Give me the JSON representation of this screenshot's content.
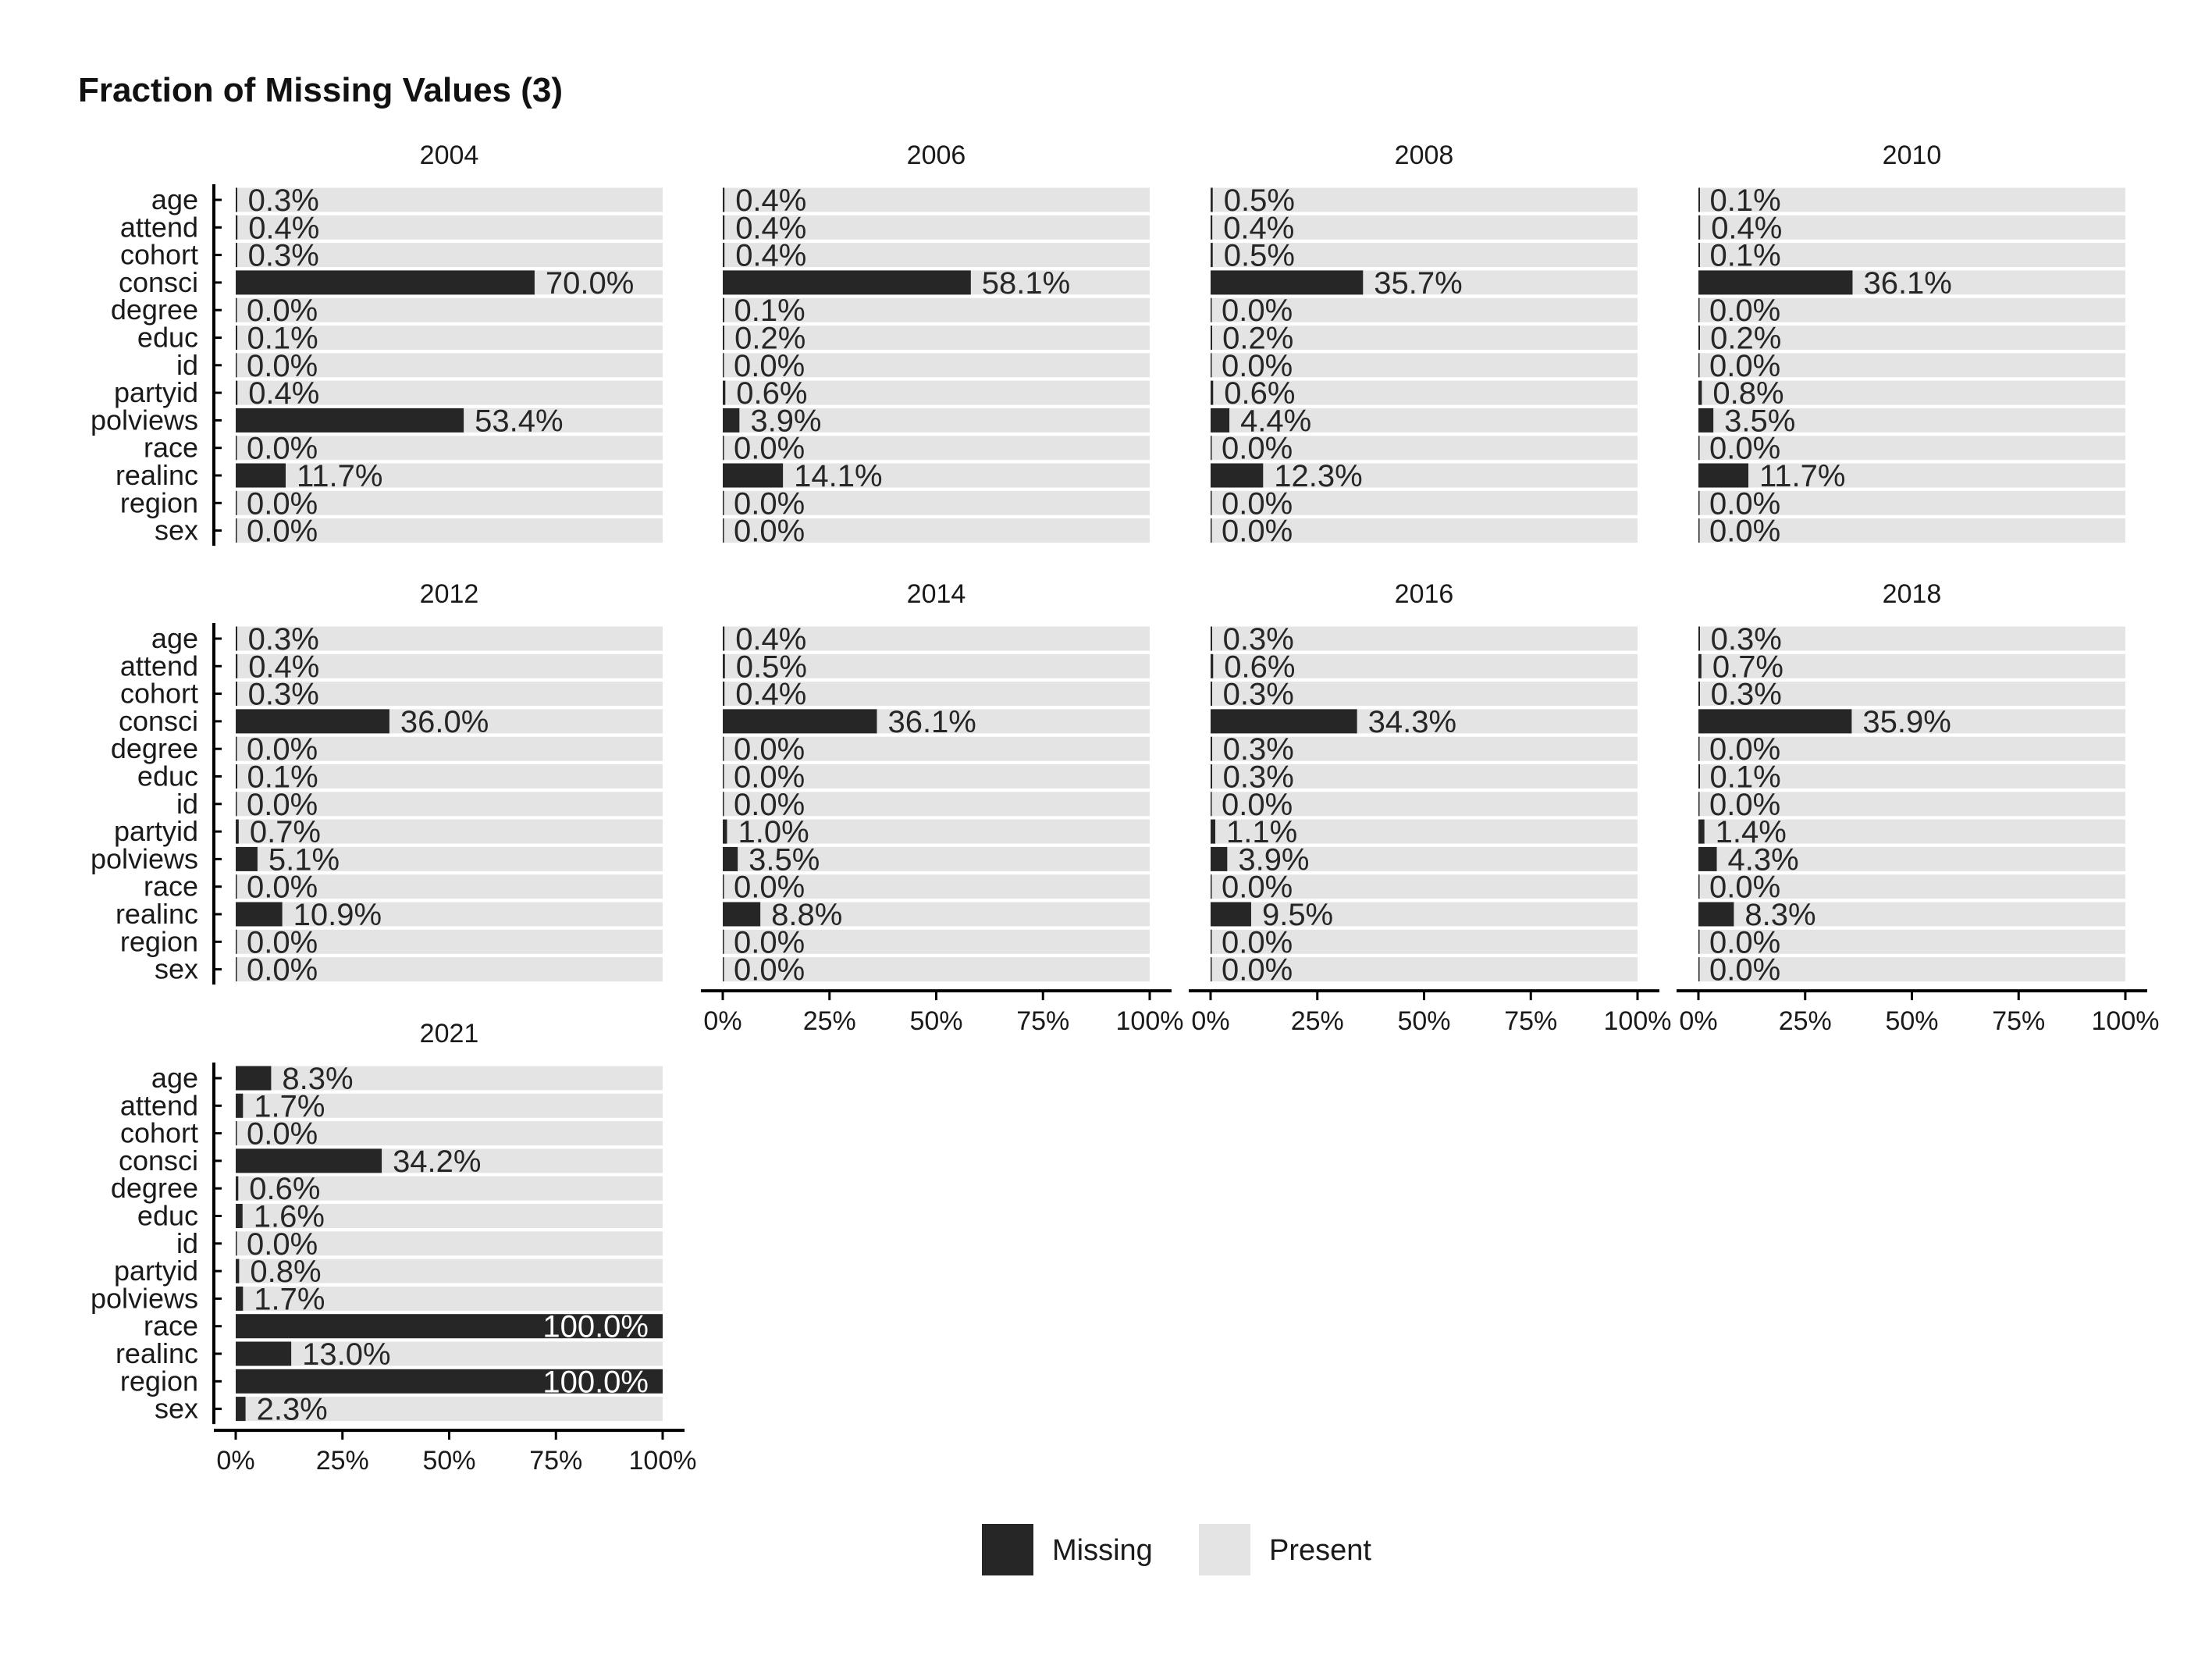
{
  "colors": {
    "missing": "#262626",
    "present": "#e4e4e4",
    "axis": "#000000",
    "label_inside": "#ffffff"
  },
  "chart_data": {
    "type": "bar",
    "orientation": "horizontal",
    "stacked": true,
    "title": "Fraction of Missing Values (3)",
    "variables": [
      "age",
      "attend",
      "cohort",
      "consci",
      "degree",
      "educ",
      "id",
      "partyid",
      "polviews",
      "race",
      "realinc",
      "region",
      "sex"
    ],
    "xlim": [
      0,
      100
    ],
    "x_ticks": [
      "0%",
      "25%",
      "50%",
      "75%",
      "100%"
    ],
    "legend": {
      "placement": "bottom",
      "entries": [
        "Missing",
        "Present"
      ]
    },
    "panels": [
      {
        "year": "2004",
        "missing_pct": [
          0.3,
          0.4,
          0.3,
          70.0,
          0.0,
          0.1,
          0.0,
          0.4,
          53.4,
          0.0,
          11.7,
          0.0,
          0.0
        ],
        "labels": [
          "0.3%",
          "0.4%",
          "0.3%",
          "70.0%",
          "0.0%",
          "0.1%",
          "0.0%",
          "0.4%",
          "53.4%",
          "0.0%",
          "11.7%",
          "0.0%",
          "0.0%"
        ]
      },
      {
        "year": "2006",
        "missing_pct": [
          0.4,
          0.4,
          0.4,
          58.1,
          0.1,
          0.2,
          0.0,
          0.6,
          3.9,
          0.0,
          14.1,
          0.0,
          0.0
        ],
        "labels": [
          "0.4%",
          "0.4%",
          "0.4%",
          "58.1%",
          "0.1%",
          "0.2%",
          "0.0%",
          "0.6%",
          "3.9%",
          "0.0%",
          "14.1%",
          "0.0%",
          "0.0%"
        ]
      },
      {
        "year": "2008",
        "missing_pct": [
          0.5,
          0.4,
          0.5,
          35.7,
          0.0,
          0.2,
          0.0,
          0.6,
          4.4,
          0.0,
          12.3,
          0.0,
          0.0
        ],
        "labels": [
          "0.5%",
          "0.4%",
          "0.5%",
          "35.7%",
          "0.0%",
          "0.2%",
          "0.0%",
          "0.6%",
          "4.4%",
          "0.0%",
          "12.3%",
          "0.0%",
          "0.0%"
        ]
      },
      {
        "year": "2010",
        "missing_pct": [
          0.1,
          0.4,
          0.1,
          36.1,
          0.0,
          0.2,
          0.0,
          0.8,
          3.5,
          0.0,
          11.7,
          0.0,
          0.0
        ],
        "labels": [
          "0.1%",
          "0.4%",
          "0.1%",
          "36.1%",
          "0.0%",
          "0.2%",
          "0.0%",
          "0.8%",
          "3.5%",
          "0.0%",
          "11.7%",
          "0.0%",
          "0.0%"
        ]
      },
      {
        "year": "2012",
        "missing_pct": [
          0.3,
          0.4,
          0.3,
          36.0,
          0.0,
          0.1,
          0.0,
          0.7,
          5.1,
          0.0,
          10.9,
          0.0,
          0.0
        ],
        "labels": [
          "0.3%",
          "0.4%",
          "0.3%",
          "36.0%",
          "0.0%",
          "0.1%",
          "0.0%",
          "0.7%",
          "5.1%",
          "0.0%",
          "10.9%",
          "0.0%",
          "0.0%"
        ]
      },
      {
        "year": "2014",
        "missing_pct": [
          0.4,
          0.5,
          0.4,
          36.1,
          0.0,
          0.0,
          0.0,
          1.0,
          3.5,
          0.0,
          8.8,
          0.0,
          0.0
        ],
        "labels": [
          "0.4%",
          "0.5%",
          "0.4%",
          "36.1%",
          "0.0%",
          "0.0%",
          "0.0%",
          "1.0%",
          "3.5%",
          "0.0%",
          "8.8%",
          "0.0%",
          "0.0%"
        ]
      },
      {
        "year": "2016",
        "missing_pct": [
          0.3,
          0.6,
          0.3,
          34.3,
          0.3,
          0.3,
          0.0,
          1.1,
          3.9,
          0.0,
          9.5,
          0.0,
          0.0
        ],
        "labels": [
          "0.3%",
          "0.6%",
          "0.3%",
          "34.3%",
          "0.3%",
          "0.3%",
          "0.0%",
          "1.1%",
          "3.9%",
          "0.0%",
          "9.5%",
          "0.0%",
          "0.0%"
        ]
      },
      {
        "year": "2018",
        "missing_pct": [
          0.3,
          0.7,
          0.3,
          35.9,
          0.0,
          0.1,
          0.0,
          1.4,
          4.3,
          0.0,
          8.3,
          0.0,
          0.0
        ],
        "labels": [
          "0.3%",
          "0.7%",
          "0.3%",
          "35.9%",
          "0.0%",
          "0.1%",
          "0.0%",
          "1.4%",
          "4.3%",
          "0.0%",
          "8.3%",
          "0.0%",
          "0.0%"
        ]
      },
      {
        "year": "2021",
        "missing_pct": [
          8.3,
          1.7,
          0.0,
          34.2,
          0.6,
          1.6,
          0.0,
          0.8,
          1.7,
          100.0,
          13.0,
          100.0,
          2.3
        ],
        "labels": [
          "8.3%",
          "1.7%",
          "0.0%",
          "34.2%",
          "0.6%",
          "1.6%",
          "0.0%",
          "0.8%",
          "1.7%",
          "100.0%",
          "13.0%",
          "100.0%",
          "2.3%"
        ]
      }
    ]
  }
}
